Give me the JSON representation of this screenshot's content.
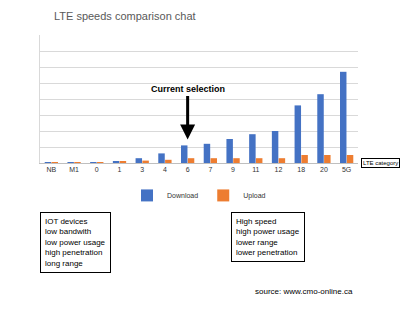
{
  "chart_data": {
    "type": "bar",
    "title": "LTE speeds comparison chat",
    "xlabel": "LTE category",
    "categories": [
      "NB",
      "M1",
      "0",
      "1",
      "3",
      "4",
      "6",
      "7",
      "9",
      "11",
      "12",
      "18",
      "20",
      "5G"
    ],
    "series": [
      {
        "name": "Download",
        "color": "#4472c4",
        "values": [
          0.05,
          0.05,
          0.05,
          0.1,
          0.3,
          0.6,
          1.1,
          1.2,
          1.5,
          1.8,
          2.0,
          3.6,
          4.3,
          5.7
        ]
      },
      {
        "name": "Upload",
        "color": "#ed7d31",
        "values": [
          0.05,
          0.05,
          0.05,
          0.1,
          0.15,
          0.2,
          0.3,
          0.3,
          0.3,
          0.3,
          0.3,
          0.5,
          0.5,
          0.5
        ]
      }
    ],
    "ylim": [
      0,
      8
    ],
    "yticks": [
      0,
      1,
      2,
      3,
      4,
      5,
      6,
      7,
      8
    ],
    "grid": true,
    "tick_labels": "x",
    "legend": "bottom",
    "annotations": [
      {
        "text": "Current selection",
        "x": "6"
      }
    ],
    "notes": [
      [
        "IOT devices",
        "low bandwith",
        "low power usage",
        "high penetration",
        "long range"
      ],
      [
        "High speed",
        "high power usage",
        "lower range",
        "lower penetration"
      ]
    ],
    "source": "source: www.cmo-online.ca"
  }
}
